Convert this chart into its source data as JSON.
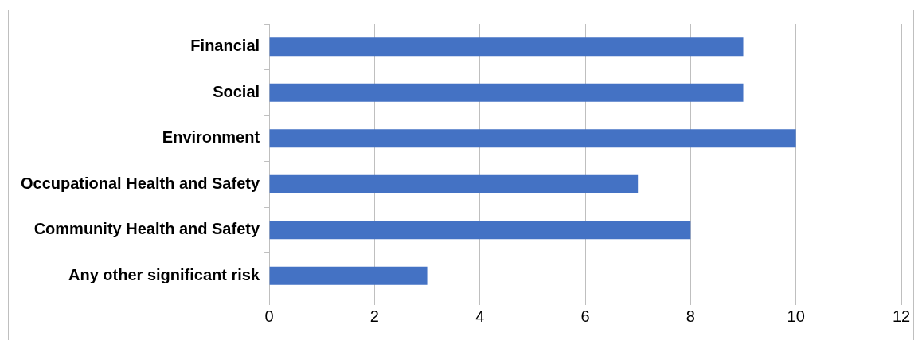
{
  "chart_data": {
    "type": "bar",
    "orientation": "horizontal",
    "categories": [
      "Financial",
      "Social",
      "Environment",
      "Occupational Health and Safety",
      "Community Health and Safety",
      "Any other significant risk"
    ],
    "values": [
      9,
      9,
      10,
      7,
      8,
      3
    ],
    "color": "#4472c4",
    "xlim": [
      0,
      12
    ],
    "xticks": [
      0,
      2,
      4,
      6,
      8,
      10,
      12
    ],
    "grid": "x",
    "legend": false
  }
}
